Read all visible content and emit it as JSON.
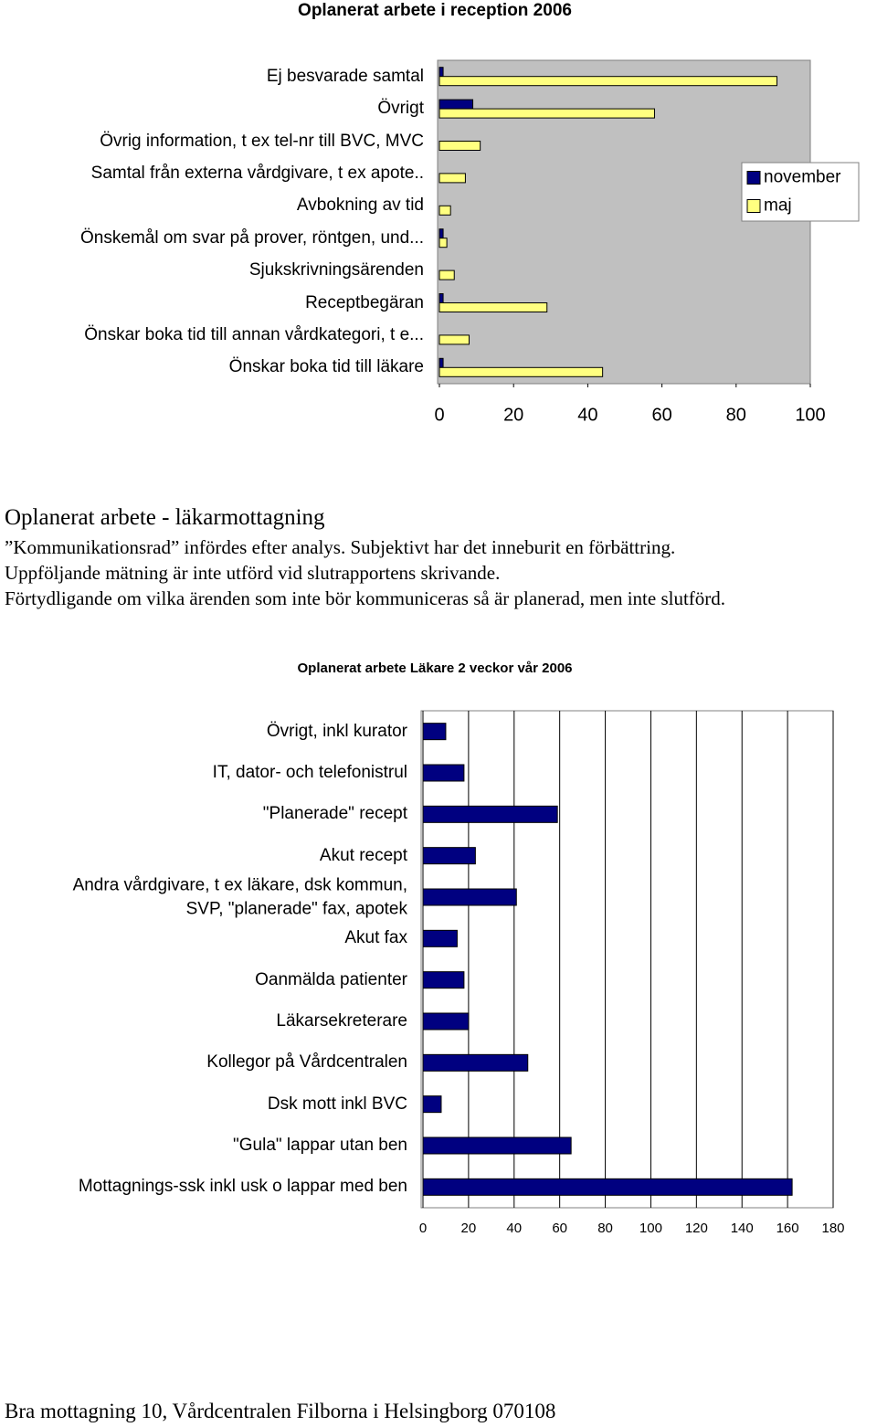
{
  "chart_data": [
    {
      "type": "bar",
      "orientation": "horizontal",
      "title": "Oplanerat arbete i reception 2006",
      "categories": [
        "Ej besvarade samtal",
        "Övrigt",
        "Övrig information, t ex tel-nr till BVC, MVC",
        "Samtal från externa vårdgivare, t ex apote..",
        "Avbokning av tid",
        "Önskemål om svar på prover, röntgen, und...",
        "Sjukskrivningsärenden",
        "Receptbegäran",
        "Önskar boka tid till annan vårdkategori, t e...",
        "Önskar boka tid till läkare"
      ],
      "series": [
        {
          "name": "november",
          "color": "#000080",
          "values": [
            1,
            9,
            0,
            0,
            0,
            1,
            0,
            1,
            0,
            1
          ]
        },
        {
          "name": "maj",
          "color": "#ffff80",
          "values": [
            91,
            58,
            11,
            7,
            3,
            2,
            4,
            29,
            8,
            44
          ]
        }
      ],
      "xlim": [
        0,
        100
      ],
      "xticks": [
        0,
        20,
        40,
        60,
        80,
        100
      ],
      "grid": false,
      "legend": "right"
    },
    {
      "type": "bar",
      "orientation": "horizontal",
      "title": "Oplanerat arbete Läkare 2 veckor vår 2006",
      "categories": [
        "Övrigt, inkl kurator",
        "IT, dator- och telefonistrul",
        "\"Planerade\" recept",
        "Akut recept",
        "Andra vårdgivare, t ex läkare, dsk kommun,\nSVP, \"planerade\" fax, apotek",
        "Akut fax",
        "Oanmälda patienter",
        "Läkarsekreterare",
        "Kollegor på Vårdcentralen",
        "Dsk mott inkl BVC",
        "\"Gula\" lappar utan ben",
        "Mottagnings-ssk  inkl usk o lappar med ben"
      ],
      "values": [
        10,
        18,
        59,
        23,
        41,
        15,
        18,
        20,
        46,
        8,
        65,
        162
      ],
      "color": "#000080",
      "xlim": [
        0,
        180
      ],
      "xticks": [
        0,
        20,
        40,
        60,
        80,
        100,
        120,
        140,
        160,
        180
      ],
      "grid": true
    }
  ],
  "document": {
    "heading": "Oplanerat arbete - läkarmottagning",
    "lines": [
      "”Kommunikationsrad” infördes efter analys. Subjektivt har det inneburit en förbättring.",
      "Uppföljande mätning är inte utförd vid slutrapportens skrivande.",
      "Förtydligande om vilka ärenden som inte bör kommuniceras så är planerad, men inte slutförd."
    ],
    "footer": "Bra mottagning 10, Vårdcentralen Filborna i Helsingborg 070108"
  }
}
